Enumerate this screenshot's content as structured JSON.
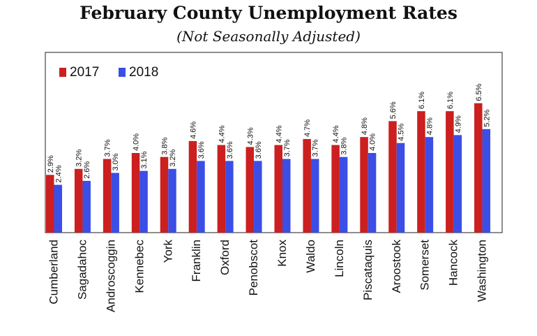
{
  "chart_data": {
    "type": "bar",
    "title": "February County Unemployment Rates",
    "subtitle": "(Not Seasonally Adjusted)",
    "xlabel": "",
    "ylabel": "",
    "ylim": [
      0,
      7.3
    ],
    "grid": false,
    "legend_position": "top-left",
    "categories": [
      "Cumberland",
      "Sagadahoc",
      "Androscoggin",
      "Kennebec",
      "York",
      "Franklin",
      "Oxford",
      "Penobscot",
      "Knox",
      "Waldo",
      "Lincoln",
      "Piscataquis",
      "Aroostook",
      "Somerset",
      "Hancock",
      "Washington"
    ],
    "series": [
      {
        "name": "2017",
        "color": "#cc1f1f",
        "values": [
          2.9,
          3.2,
          3.7,
          4.0,
          3.8,
          4.6,
          4.4,
          4.3,
          4.4,
          4.7,
          4.4,
          4.8,
          5.6,
          6.1,
          6.1,
          6.5
        ],
        "labels": [
          "2.9%",
          "3.2%",
          "3.7%",
          "4.0%",
          "3.8%",
          "4.6%",
          "4.4%",
          "4.3%",
          "4.4%",
          "4.7%",
          "4.4%",
          "4.8%",
          "5.6%",
          "6.1%",
          "6.1%",
          "6.5%"
        ]
      },
      {
        "name": "2018",
        "color": "#3b4ee6",
        "values": [
          2.4,
          2.6,
          3.0,
          3.1,
          3.2,
          3.6,
          3.6,
          3.6,
          3.7,
          3.7,
          3.8,
          4.0,
          4.5,
          4.8,
          4.9,
          5.2
        ],
        "labels": [
          "2.4%",
          "2.6%",
          "3.0%",
          "3.1%",
          "3.2%",
          "3.6%",
          "3.6%",
          "3.6%",
          "3.7%",
          "3.7%",
          "3.8%",
          "4.0%",
          "4.5%",
          "4.8%",
          "4.9%",
          "5.2%"
        ]
      }
    ]
  }
}
